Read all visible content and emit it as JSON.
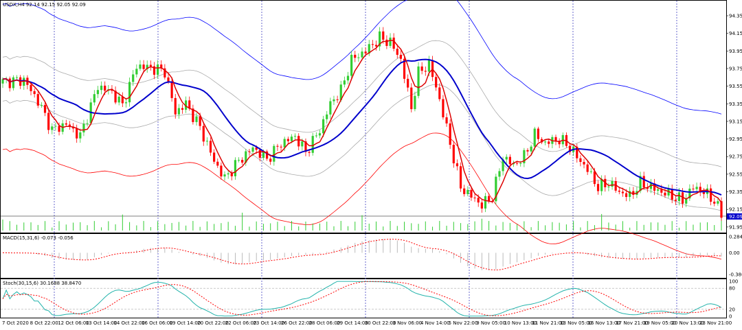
{
  "window": {
    "symbol_header": "USDX,H4  92.14 92.15 92.05 92.09",
    "macd_header": "MACD(15,31,6) -0.073 -0.056",
    "stoch_header": "Stoch(30,15,6) 30.1688 38.8470"
  },
  "colors": {
    "bull": "#32cd32",
    "bear": "#ff0000",
    "ma_fast": "#dd0000",
    "ma_slow": "#0000cc",
    "band_outer_upper": "#0000ff",
    "band_outer_lower": "#ff0000",
    "band_inner": "#aaaaaa",
    "macd_signal": "#ff0000",
    "stoch_main": "#20b2aa",
    "stoch_signal": "#ff0000",
    "price_tag": "#0000cc"
  },
  "chart_data": [
    {
      "type": "candlestick",
      "panel": "price",
      "ylim": [
        91.91,
        94.42
      ],
      "y_ticks": [
        "94.35",
        "94.15",
        "93.95",
        "93.75",
        "93.55",
        "93.35",
        "93.15",
        "92.95",
        "92.75",
        "92.55",
        "92.35",
        "92.15",
        "91.95"
      ],
      "current_price": "92.09",
      "x_ticks": [
        "7 Oct 2020",
        "8 Oct 22:00",
        "12 Oct 06:00",
        "13 Oct 14:00",
        "14 Oct 22:00",
        "16 Oct 06:00",
        "19 Oct 14:00",
        "20 Oct 22:00",
        "22 Oct 06:00",
        "23 Oct 14:00",
        "26 Oct 22:00",
        "28 Oct 06:00",
        "29 Oct 14:00",
        "30 Oct 22:00",
        "3 Nov 06:00",
        "4 Nov 14:00",
        "5 Nov 22:00",
        "9 Nov 05:00",
        "10 Nov 13:00",
        "11 Nov 21:00",
        "13 Nov 05:00",
        "16 Nov 13:00",
        "17 Nov 21:00",
        "19 Nov 05:00",
        "20 Nov 13:00",
        "23 Nov 21:00"
      ],
      "anchors": [
        [
          0,
          93.6
        ],
        [
          6,
          93.62
        ],
        [
          10,
          93.38
        ],
        [
          14,
          93.05
        ],
        [
          18,
          93.12
        ],
        [
          22,
          92.98
        ],
        [
          27,
          93.55
        ],
        [
          31,
          93.48
        ],
        [
          34,
          93.33
        ],
        [
          38,
          93.78
        ],
        [
          42,
          93.76
        ],
        [
          46,
          93.72
        ],
        [
          49,
          93.25
        ],
        [
          52,
          93.35
        ],
        [
          56,
          93.08
        ],
        [
          60,
          92.7
        ],
        [
          63,
          92.5
        ],
        [
          67,
          92.7
        ],
        [
          71,
          92.85
        ],
        [
          75,
          92.72
        ],
        [
          79,
          92.9
        ],
        [
          83,
          92.98
        ],
        [
          86,
          92.8
        ],
        [
          90,
          93.05
        ],
        [
          93,
          93.35
        ],
        [
          96,
          93.5
        ],
        [
          99,
          93.85
        ],
        [
          103,
          93.95
        ],
        [
          107,
          94.1
        ],
        [
          110,
          94.05
        ],
        [
          113,
          93.85
        ],
        [
          116,
          93.3
        ],
        [
          118,
          93.7
        ],
        [
          121,
          93.8
        ],
        [
          124,
          93.4
        ],
        [
          127,
          92.9
        ],
        [
          130,
          92.4
        ],
        [
          133,
          92.3
        ],
        [
          136,
          92.2
        ],
        [
          139,
          92.3
        ],
        [
          142,
          92.75
        ],
        [
          145,
          92.65
        ],
        [
          148,
          92.75
        ],
        [
          151,
          93.0
        ],
        [
          154,
          92.9
        ],
        [
          157,
          92.95
        ],
        [
          160,
          92.9
        ],
        [
          163,
          92.75
        ],
        [
          166,
          92.6
        ],
        [
          169,
          92.4
        ],
        [
          172,
          92.45
        ],
        [
          175,
          92.35
        ],
        [
          178,
          92.3
        ],
        [
          181,
          92.45
        ],
        [
          184,
          92.4
        ],
        [
          187,
          92.35
        ],
        [
          190,
          92.3
        ],
        [
          193,
          92.25
        ],
        [
          196,
          92.4
        ],
        [
          199,
          92.35
        ],
        [
          202,
          92.25
        ],
        [
          204,
          92.09
        ]
      ],
      "bar_count": 205,
      "indicators": [
        "MA fast",
        "MA slow",
        "Envelope bands"
      ]
    },
    {
      "type": "histogram",
      "panel": "macd",
      "ylim": [
        -0.42,
        0.31
      ],
      "y_ticks": [
        "0.284",
        "0.00",
        "-0.386"
      ],
      "header": "MACD(15,31,6) -0.073 -0.056"
    },
    {
      "type": "line",
      "panel": "stochastic",
      "ylim": [
        0,
        100
      ],
      "y_ticks": [
        "100",
        "80",
        "20",
        "0"
      ],
      "levels": [
        80,
        20
      ],
      "header": "Stoch(30,15,6) 30.1688 38.8470",
      "main_value": 30.1688,
      "signal_value": 38.847
    }
  ]
}
